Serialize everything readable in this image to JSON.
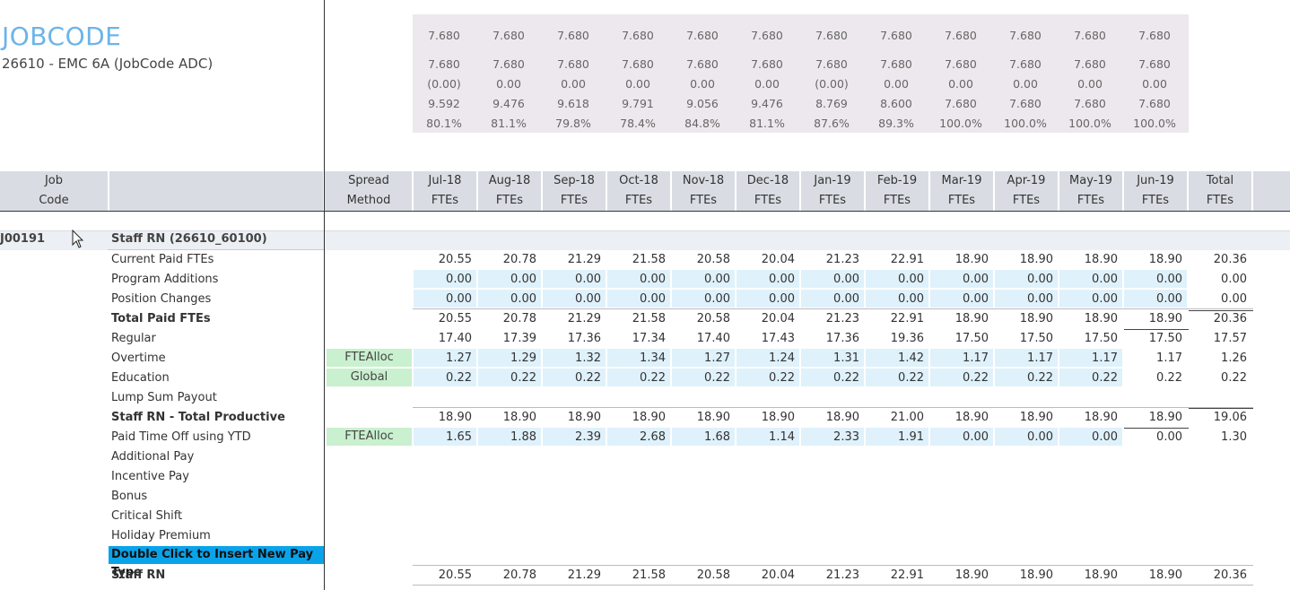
{
  "header": {
    "title": "JOBCODE",
    "subtitle": "26610 - EMC 6A (JobCode ADC)"
  },
  "summary": {
    "rows": [
      [
        "7.680",
        "7.680",
        "7.680",
        "7.680",
        "7.680",
        "7.680",
        "7.680",
        "7.680",
        "7.680",
        "7.680",
        "7.680",
        "7.680"
      ],
      [
        "7.680",
        "7.680",
        "7.680",
        "7.680",
        "7.680",
        "7.680",
        "7.680",
        "7.680",
        "7.680",
        "7.680",
        "7.680",
        "7.680"
      ],
      [
        "(0.00)",
        "0.00",
        "0.00",
        "0.00",
        "0.00",
        "0.00",
        "(0.00)",
        "0.00",
        "0.00",
        "0.00",
        "0.00",
        "0.00"
      ],
      [
        "9.592",
        "9.476",
        "9.618",
        "9.791",
        "9.056",
        "9.476",
        "8.769",
        "8.600",
        "7.680",
        "7.680",
        "7.680",
        "7.680"
      ],
      [
        "80.1%",
        "81.1%",
        "79.8%",
        "78.4%",
        "84.8%",
        "81.1%",
        "87.6%",
        "89.3%",
        "100.0%",
        "100.0%",
        "100.0%",
        "100.0%"
      ]
    ]
  },
  "columns": {
    "job_code": [
      "Job",
      "Code"
    ],
    "spread": [
      "Spread",
      "Method"
    ],
    "months": [
      [
        "Jul-18",
        "FTEs"
      ],
      [
        "Aug-18",
        "FTEs"
      ],
      [
        "Sep-18",
        "FTEs"
      ],
      [
        "Oct-18",
        "FTEs"
      ],
      [
        "Nov-18",
        "FTEs"
      ],
      [
        "Dec-18",
        "FTEs"
      ],
      [
        "Jan-19",
        "FTEs"
      ],
      [
        "Feb-19",
        "FTEs"
      ],
      [
        "Mar-19",
        "FTEs"
      ],
      [
        "Apr-19",
        "FTEs"
      ],
      [
        "May-19",
        "FTEs"
      ],
      [
        "Jun-19",
        "FTEs"
      ],
      [
        "Total",
        "FTEs"
      ]
    ]
  },
  "group": {
    "code": "J00191",
    "name": "Staff RN (26610_60100)"
  },
  "rows": [
    {
      "label": "Current Paid FTEs",
      "bold": false,
      "spread": "",
      "editable": false,
      "values": [
        "20.55",
        "20.78",
        "21.29",
        "21.58",
        "20.58",
        "20.04",
        "21.23",
        "22.91",
        "18.90",
        "18.90",
        "18.90",
        "18.90",
        "20.36"
      ]
    },
    {
      "label": "Program Additions",
      "bold": false,
      "spread": "",
      "editable": true,
      "values": [
        "0.00",
        "0.00",
        "0.00",
        "0.00",
        "0.00",
        "0.00",
        "0.00",
        "0.00",
        "0.00",
        "0.00",
        "0.00",
        "0.00",
        "0.00"
      ]
    },
    {
      "label": "Position Changes",
      "bold": false,
      "spread": "",
      "editable": true,
      "values": [
        "0.00",
        "0.00",
        "0.00",
        "0.00",
        "0.00",
        "0.00",
        "0.00",
        "0.00",
        "0.00",
        "0.00",
        "0.00",
        "0.00",
        "0.00"
      ]
    },
    {
      "label": "Total Paid FTEs",
      "bold": true,
      "spread": "",
      "editable": false,
      "values": [
        "20.55",
        "20.78",
        "21.29",
        "21.58",
        "20.58",
        "20.04",
        "21.23",
        "22.91",
        "18.90",
        "18.90",
        "18.90",
        "18.90",
        "20.36"
      ]
    },
    {
      "label": "Regular",
      "bold": false,
      "spread": "",
      "editable": false,
      "values": [
        "17.40",
        "17.39",
        "17.36",
        "17.34",
        "17.40",
        "17.43",
        "17.36",
        "19.36",
        "17.50",
        "17.50",
        "17.50",
        "17.50",
        "17.57"
      ]
    },
    {
      "label": "Overtime",
      "bold": false,
      "spread": "FTEAlloc",
      "editable": true,
      "values": [
        "1.27",
        "1.29",
        "1.32",
        "1.34",
        "1.27",
        "1.24",
        "1.31",
        "1.42",
        "1.17",
        "1.17",
        "1.17",
        "1.17",
        "1.26"
      ]
    },
    {
      "label": "Education",
      "bold": false,
      "spread": "Global",
      "editable": true,
      "values": [
        "0.22",
        "0.22",
        "0.22",
        "0.22",
        "0.22",
        "0.22",
        "0.22",
        "0.22",
        "0.22",
        "0.22",
        "0.22",
        "0.22",
        "0.22"
      ]
    },
    {
      "label": "Lump Sum Payout",
      "bold": false,
      "spread": "",
      "editable": false,
      "values": []
    },
    {
      "label": "Staff RN - Total Productive",
      "bold": true,
      "spread": "",
      "editable": false,
      "values": [
        "18.90",
        "18.90",
        "18.90",
        "18.90",
        "18.90",
        "18.90",
        "18.90",
        "21.00",
        "18.90",
        "18.90",
        "18.90",
        "18.90",
        "19.06"
      ]
    },
    {
      "label": "Paid Time Off using YTD",
      "bold": false,
      "spread": "FTEAlloc",
      "editable": true,
      "values": [
        "1.65",
        "1.88",
        "2.39",
        "2.68",
        "1.68",
        "1.14",
        "2.33",
        "1.91",
        "0.00",
        "0.00",
        "0.00",
        "0.00",
        "1.30"
      ]
    },
    {
      "label": "Additional Pay",
      "bold": false,
      "spread": "",
      "editable": false,
      "values": []
    },
    {
      "label": "Incentive Pay",
      "bold": false,
      "spread": "",
      "editable": false,
      "values": []
    },
    {
      "label": "Bonus",
      "bold": false,
      "spread": "",
      "editable": false,
      "values": []
    },
    {
      "label": "Critical Shift",
      "bold": false,
      "spread": "",
      "editable": false,
      "values": []
    },
    {
      "label": "Holiday Premium",
      "bold": false,
      "spread": "",
      "editable": false,
      "values": []
    },
    {
      "label": "Double Click to Insert New Pay Type",
      "bold": true,
      "spread": "",
      "editable": false,
      "insert": true,
      "values": []
    },
    {
      "label": "Staff RN",
      "bold": true,
      "spread": "",
      "editable": false,
      "values": [
        "20.55",
        "20.78",
        "21.29",
        "21.58",
        "20.58",
        "20.04",
        "21.23",
        "22.91",
        "18.90",
        "18.90",
        "18.90",
        "18.90",
        "20.36"
      ]
    }
  ]
}
